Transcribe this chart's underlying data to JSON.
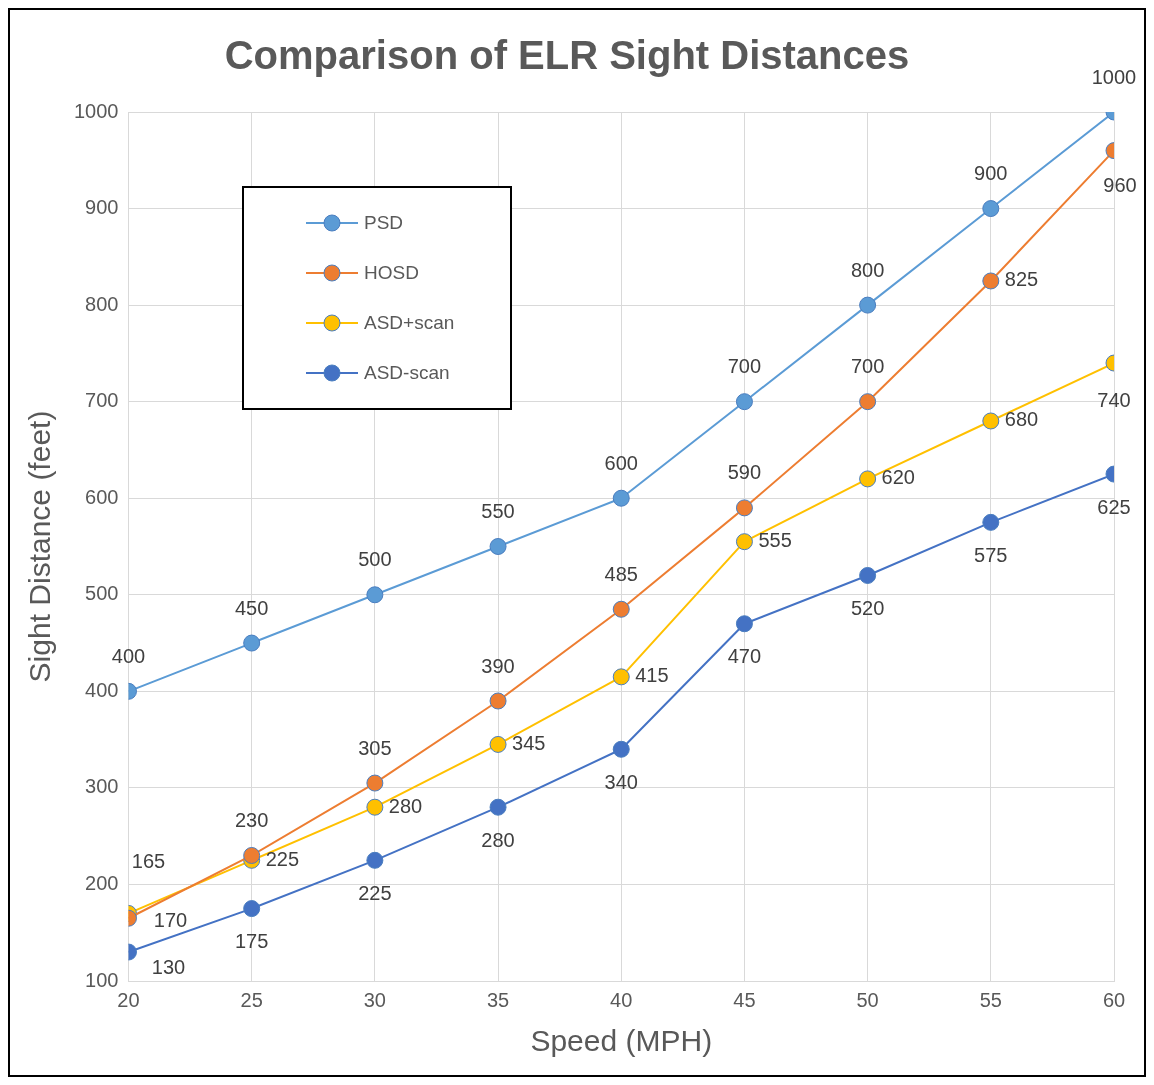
{
  "chart_data": {
    "type": "line",
    "title": "Comparison of ELR Sight Distances",
    "xlabel": "Speed (MPH)",
    "ylabel": "Sight Distance (feet)",
    "x": [
      20,
      25,
      30,
      35,
      40,
      45,
      50,
      55,
      60
    ],
    "xlim": [
      20,
      60
    ],
    "xticks": [
      20,
      25,
      30,
      35,
      40,
      45,
      50,
      55,
      60
    ],
    "ylim": [
      100,
      1000
    ],
    "yticks": [
      100,
      200,
      300,
      400,
      500,
      600,
      700,
      800,
      900,
      1000
    ],
    "grid": true,
    "legend": "top left",
    "marker": "circle",
    "line_style": "solid",
    "data_labels": true,
    "series": [
      {
        "name": "PSD",
        "color": "#5b9bd5",
        "values": [
          400,
          450,
          500,
          550,
          600,
          700,
          800,
          900,
          1000
        ]
      },
      {
        "name": "HOSD",
        "color": "#ed7d31",
        "values": [
          165,
          230,
          305,
          390,
          485,
          590,
          700,
          825,
          960
        ]
      },
      {
        "name": "ASD+scan",
        "color": "#ffc000",
        "values": [
          170,
          225,
          280,
          345,
          415,
          555,
          620,
          680,
          740
        ]
      },
      {
        "name": "ASD-scan",
        "color": "#4472c4",
        "values": [
          130,
          175,
          225,
          280,
          340,
          470,
          520,
          575,
          625
        ]
      }
    ]
  }
}
